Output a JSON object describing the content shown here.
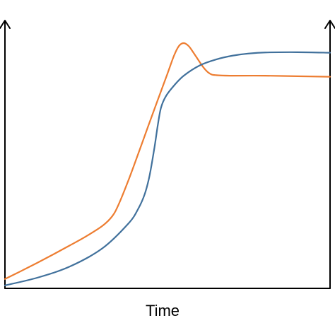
{
  "chart_data": {
    "type": "line",
    "title": "",
    "xlabel": "Time",
    "ylabel": "",
    "xlim": [
      0,
      100
    ],
    "ylim": [
      0,
      100
    ],
    "grid": false,
    "legend": "none",
    "axes": {
      "left_arrow": true,
      "right_arrow": true
    },
    "series": [
      {
        "color": "#ED7D31",
        "points": [
          [
            0,
            3.5
          ],
          [
            5,
            6.5
          ],
          [
            10,
            9.6
          ],
          [
            15,
            12.8
          ],
          [
            20,
            16.1
          ],
          [
            25,
            19.5
          ],
          [
            30,
            23.4
          ],
          [
            33,
            27.0
          ],
          [
            35,
            31.5
          ],
          [
            38,
            40.5
          ],
          [
            41,
            50.4
          ],
          [
            44,
            60.5
          ],
          [
            47,
            70.5
          ],
          [
            50,
            80.4
          ],
          [
            52,
            87.1
          ],
          [
            53.5,
            90.7
          ],
          [
            55,
            91.8
          ],
          [
            56.5,
            90.7
          ],
          [
            58,
            88.2
          ],
          [
            61,
            82.8
          ],
          [
            63,
            80.4
          ],
          [
            65,
            79.8
          ],
          [
            70,
            79.6
          ],
          [
            80,
            79.6
          ],
          [
            90,
            79.4
          ],
          [
            100,
            79.2
          ]
        ]
      },
      {
        "color": "#41719C",
        "points": [
          [
            0,
            1.1
          ],
          [
            10,
            4.0
          ],
          [
            20,
            8.2
          ],
          [
            30,
            15.0
          ],
          [
            38,
            24.3
          ],
          [
            41,
            29.8
          ],
          [
            43,
            35.3
          ],
          [
            44.5,
            42.3
          ],
          [
            46,
            52.8
          ],
          [
            47,
            61.0
          ],
          [
            48,
            67.6
          ],
          [
            49.5,
            71.9
          ],
          [
            52,
            75.9
          ],
          [
            55,
            79.6
          ],
          [
            60,
            83.5
          ],
          [
            65,
            85.7
          ],
          [
            70,
            87.1
          ],
          [
            75,
            87.9
          ],
          [
            80,
            88.3
          ],
          [
            90,
            88.4
          ],
          [
            100,
            88.2
          ]
        ]
      }
    ]
  }
}
